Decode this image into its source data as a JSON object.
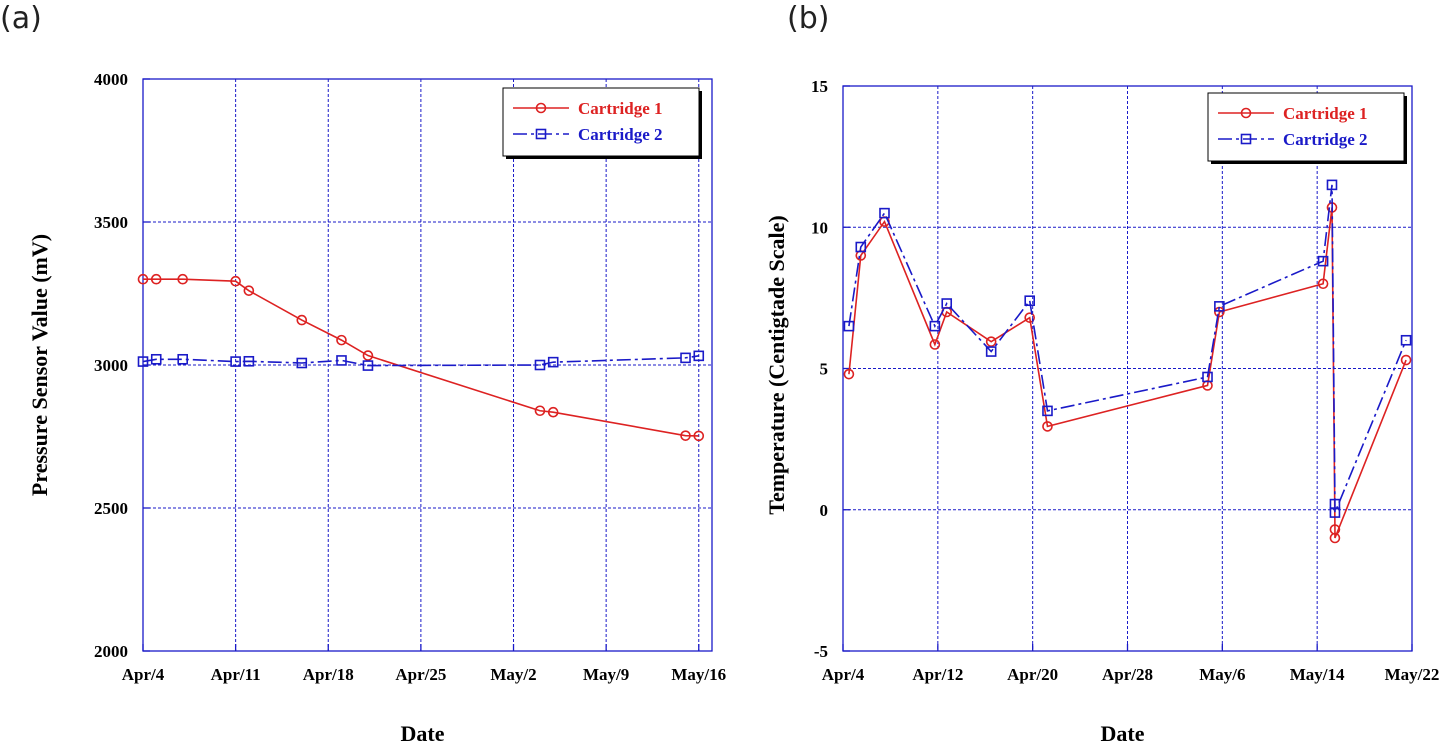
{
  "chart_data": [
    {
      "type": "line",
      "panel_label": "(a)",
      "xlabel": "Date",
      "ylabel": "Pressure Sensor Value (mV)",
      "xlim": [
        "2016-04-04",
        "2016-05-17"
      ],
      "ylim": [
        2000,
        4000
      ],
      "x_ticks": [
        {
          "date": "2016-04-04",
          "label": "Apr/4"
        },
        {
          "date": "2016-04-11",
          "label": "Apr/11"
        },
        {
          "date": "2016-04-18",
          "label": "Apr/18"
        },
        {
          "date": "2016-04-25",
          "label": "Apr/25"
        },
        {
          "date": "2016-05-02",
          "label": "May/2"
        },
        {
          "date": "2016-05-09",
          "label": "May/9"
        },
        {
          "date": "2016-05-16",
          "label": "May/16"
        }
      ],
      "y_ticks": [
        2000,
        2500,
        3000,
        3500,
        4000
      ],
      "grid": true,
      "legend_position": "top-right",
      "series": [
        {
          "name": "Cartridge 1",
          "color": "#dd2222",
          "marker": "circle",
          "line_style": "solid",
          "points": [
            [
              "2016-04-04",
              3300
            ],
            [
              "2016-04-05",
              3300
            ],
            [
              "2016-04-07",
              3300
            ],
            [
              "2016-04-11",
              3293
            ],
            [
              "2016-04-12",
              3260
            ],
            [
              "2016-04-16",
              3157
            ],
            [
              "2016-04-19",
              3087
            ],
            [
              "2016-04-21",
              3033
            ],
            [
              "2016-05-04",
              2840
            ],
            [
              "2016-05-05",
              2835
            ],
            [
              "2016-05-15",
              2753
            ],
            [
              "2016-05-16",
              2752
            ]
          ]
        },
        {
          "name": "Cartridge 2",
          "color": "#1a1ac8",
          "marker": "square",
          "line_style": "dashdot",
          "points": [
            [
              "2016-04-04",
              3012
            ],
            [
              "2016-04-05",
              3020
            ],
            [
              "2016-04-07",
              3020
            ],
            [
              "2016-04-11",
              3012
            ],
            [
              "2016-04-12",
              3013
            ],
            [
              "2016-04-16",
              3007
            ],
            [
              "2016-04-19",
              3016
            ],
            [
              "2016-04-21",
              2998
            ],
            [
              "2016-05-04",
              3000
            ],
            [
              "2016-05-05",
              3010
            ],
            [
              "2016-05-15",
              3025
            ],
            [
              "2016-05-16",
              3032
            ]
          ]
        }
      ]
    },
    {
      "type": "line",
      "panel_label": "(b)",
      "xlabel": "Date",
      "ylabel": "Temperature (Centigtade Scale)",
      "xlim": [
        "2016-04-04",
        "2016-05-22"
      ],
      "ylim": [
        -5,
        15
      ],
      "x_ticks": [
        {
          "date": "2016-04-04",
          "label": "Apr/4"
        },
        {
          "date": "2016-04-12",
          "label": "Apr/12"
        },
        {
          "date": "2016-04-20",
          "label": "Apr/20"
        },
        {
          "date": "2016-04-28",
          "label": "Apr/28"
        },
        {
          "date": "2016-05-06",
          "label": "May/6"
        },
        {
          "date": "2016-05-14",
          "label": "May/14"
        },
        {
          "date": "2016-05-22",
          "label": "May/22"
        }
      ],
      "y_ticks": [
        -5,
        0,
        5,
        10,
        15
      ],
      "grid": true,
      "legend_position": "top-right",
      "series": [
        {
          "name": "Cartridge 1",
          "color": "#dd2222",
          "marker": "circle",
          "line_style": "solid",
          "points": [
            [
              "2016-04-04 12:00",
              4.8
            ],
            [
              "2016-04-05 12:00",
              9.0
            ],
            [
              "2016-04-07 12:00",
              10.2
            ],
            [
              "2016-04-11 18:00",
              5.85
            ],
            [
              "2016-04-12 18:00",
              7.0
            ],
            [
              "2016-04-16 12:00",
              5.95
            ],
            [
              "2016-04-19 18:00",
              6.8
            ],
            [
              "2016-04-21 06:00",
              2.95
            ],
            [
              "2016-05-04 18:00",
              4.4
            ],
            [
              "2016-05-05 18:00",
              7.0
            ],
            [
              "2016-05-14 12:00",
              8.0
            ],
            [
              "2016-05-15 06:00",
              10.7
            ],
            [
              "2016-05-15 12:00",
              -0.7
            ],
            [
              "2016-05-15 12:00",
              -1.0
            ],
            [
              "2016-05-21 12:00",
              5.3
            ]
          ]
        },
        {
          "name": "Cartridge 2",
          "color": "#1a1ac8",
          "marker": "square",
          "line_style": "dashdot",
          "points": [
            [
              "2016-04-04 12:00",
              6.5
            ],
            [
              "2016-04-05 12:00",
              9.3
            ],
            [
              "2016-04-07 12:00",
              10.5
            ],
            [
              "2016-04-11 18:00",
              6.5
            ],
            [
              "2016-04-12 18:00",
              7.3
            ],
            [
              "2016-04-16 12:00",
              5.6
            ],
            [
              "2016-04-19 18:00",
              7.4
            ],
            [
              "2016-04-21 06:00",
              3.5
            ],
            [
              "2016-05-04 18:00",
              4.7
            ],
            [
              "2016-05-05 18:00",
              7.2
            ],
            [
              "2016-05-14 12:00",
              8.8
            ],
            [
              "2016-05-15 06:00",
              11.5
            ],
            [
              "2016-05-15 12:00",
              0.2
            ],
            [
              "2016-05-15 12:00",
              -0.1
            ],
            [
              "2016-05-21 12:00",
              6.0
            ]
          ]
        }
      ]
    }
  ]
}
